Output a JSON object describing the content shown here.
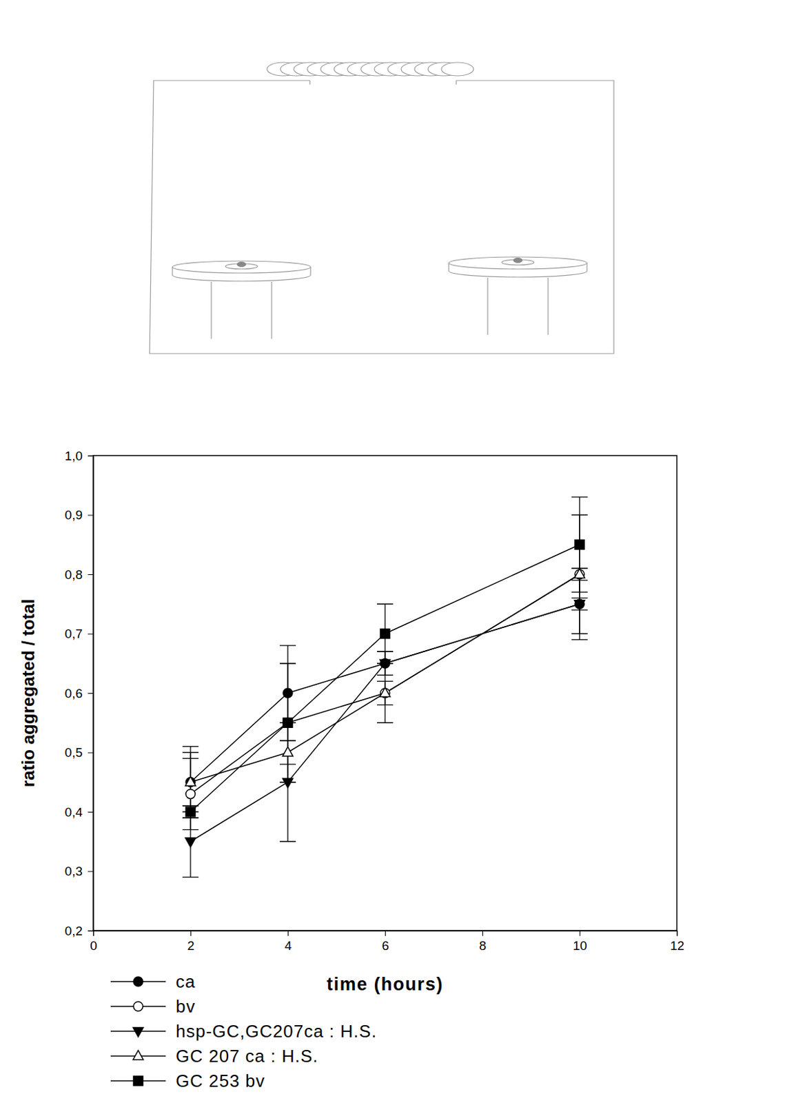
{
  "chart_data": {
    "type": "line",
    "x_label": "time (hours)",
    "y_label": "ratio aggregated / total",
    "x": [
      2,
      4,
      6,
      10
    ],
    "xlim": [
      0,
      12
    ],
    "xticks": [
      0,
      2,
      4,
      6,
      8,
      10,
      12
    ],
    "ylim": [
      0.2,
      1.0
    ],
    "yticks": [
      {
        "value": 0.2,
        "label": "0,2"
      },
      {
        "value": 0.3,
        "label": "0,3"
      },
      {
        "value": 0.4,
        "label": "0,4"
      },
      {
        "value": 0.5,
        "label": "0,5"
      },
      {
        "value": 0.6,
        "label": "0,6"
      },
      {
        "value": 0.7,
        "label": "0,7"
      },
      {
        "value": 0.8,
        "label": "0,8"
      },
      {
        "value": 0.9,
        "label": "0,9"
      },
      {
        "value": 1.0,
        "label": "1,0"
      }
    ],
    "grid": false,
    "legend": "bottom-left",
    "series": [
      {
        "name": "ca",
        "color": "#000000",
        "marker": "circle",
        "values": [
          0.45,
          0.6,
          0.65,
          0.75
        ],
        "errors": [
          0.05,
          0.08,
          0.02,
          0.06
        ]
      },
      {
        "name": "bv",
        "color": "#000000",
        "marker": "circle-open",
        "values": [
          0.43,
          0.55,
          0.6,
          0.8
        ],
        "errors": [
          0.06,
          0.1,
          0.02,
          0.1
        ]
      },
      {
        "name": "hsp-GC,GC207ca : H.S.",
        "color": "#000000",
        "marker": "triangle-down",
        "values": [
          0.35,
          0.45,
          0.65,
          0.75
        ],
        "errors": [
          0.06,
          0.1,
          0.02,
          0.01
        ]
      },
      {
        "name": "GC 207 ca : H.S.",
        "color": "#000000",
        "marker": "triangle-open",
        "values": [
          0.45,
          0.5,
          0.6,
          0.8
        ],
        "errors": [
          0.06,
          0.02,
          0.05,
          0.01
        ]
      },
      {
        "name": "GC 253 bv",
        "color": "#000000",
        "marker": "square",
        "values": [
          0.4,
          0.55,
          0.7,
          0.85
        ],
        "errors": [
          0.01,
          0.1,
          0.05,
          0.08
        ]
      }
    ]
  }
}
